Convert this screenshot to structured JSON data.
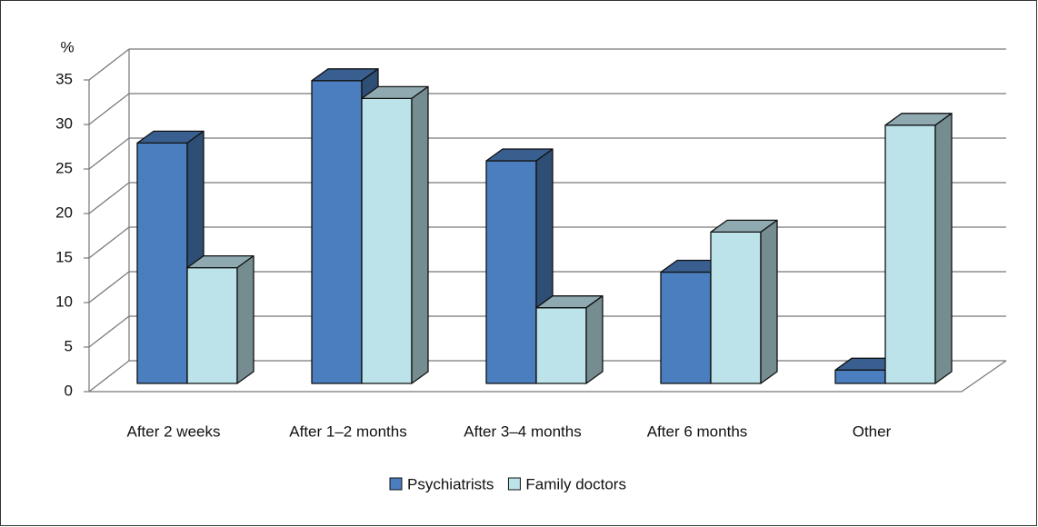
{
  "chart_data": {
    "type": "bar3d",
    "y_label": "%",
    "categories": [
      "After 2 weeks",
      "After 1–2 months",
      "After 3–4 months",
      "After 6 months",
      "Other"
    ],
    "series": [
      {
        "name": "Psychiatrists",
        "color": "#4a7ebf",
        "values": [
          27,
          34,
          25,
          12.5,
          1.5
        ]
      },
      {
        "name": "Family doctors",
        "color": "#bde3ea",
        "values": [
          13,
          32,
          8.5,
          17,
          29
        ]
      }
    ],
    "ylim": [
      0,
      35
    ],
    "yticks": [
      0,
      5,
      10,
      15,
      20,
      25,
      30,
      35
    ],
    "grid": true,
    "legend": "bottom"
  }
}
